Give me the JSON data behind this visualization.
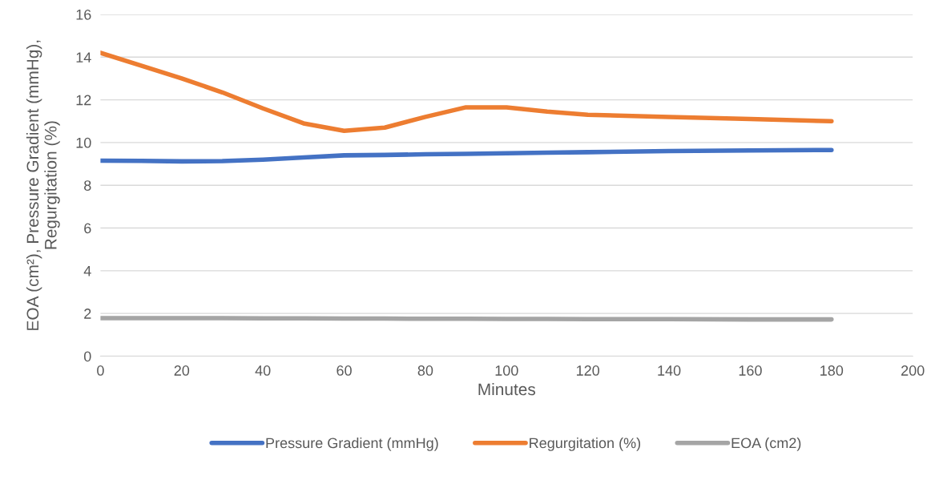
{
  "chart_data": {
    "type": "line",
    "xlabel": "Minutes",
    "ylabel": "EOA (cm²), Pressure Gradient (mmHg),\nRegurgitation (%)",
    "x": [
      0,
      10,
      20,
      30,
      40,
      50,
      60,
      70,
      80,
      90,
      100,
      110,
      120,
      140,
      160,
      180
    ],
    "series": [
      {
        "name": "Pressure Gradient (mmHg)",
        "color": "#4472c4",
        "values": [
          9.15,
          9.14,
          9.12,
          9.13,
          9.2,
          9.3,
          9.4,
          9.42,
          9.45,
          9.47,
          9.5,
          9.53,
          9.55,
          9.6,
          9.63,
          9.65
        ]
      },
      {
        "name": "Regurgitation (%)",
        "color": "#ed7d31",
        "values": [
          14.2,
          13.6,
          13.0,
          12.35,
          11.6,
          10.9,
          10.55,
          10.7,
          11.2,
          11.65,
          11.65,
          11.45,
          11.3,
          11.2,
          11.1,
          11.0
        ]
      },
      {
        "name": "EOA (cm2)",
        "color": "#a5a5a5",
        "values": [
          1.78,
          1.78,
          1.78,
          1.78,
          1.77,
          1.77,
          1.76,
          1.76,
          1.75,
          1.75,
          1.74,
          1.74,
          1.73,
          1.73,
          1.72,
          1.72
        ]
      }
    ],
    "xlim": [
      0,
      200
    ],
    "xticks": [
      0,
      20,
      40,
      60,
      80,
      100,
      120,
      140,
      160,
      180,
      200
    ],
    "ylim": [
      0,
      16
    ],
    "yticks": [
      0,
      2,
      4,
      6,
      8,
      10,
      12,
      14,
      16
    ],
    "grid": "y",
    "legend": "bottom",
    "marker": "none",
    "line_style": "solid"
  }
}
